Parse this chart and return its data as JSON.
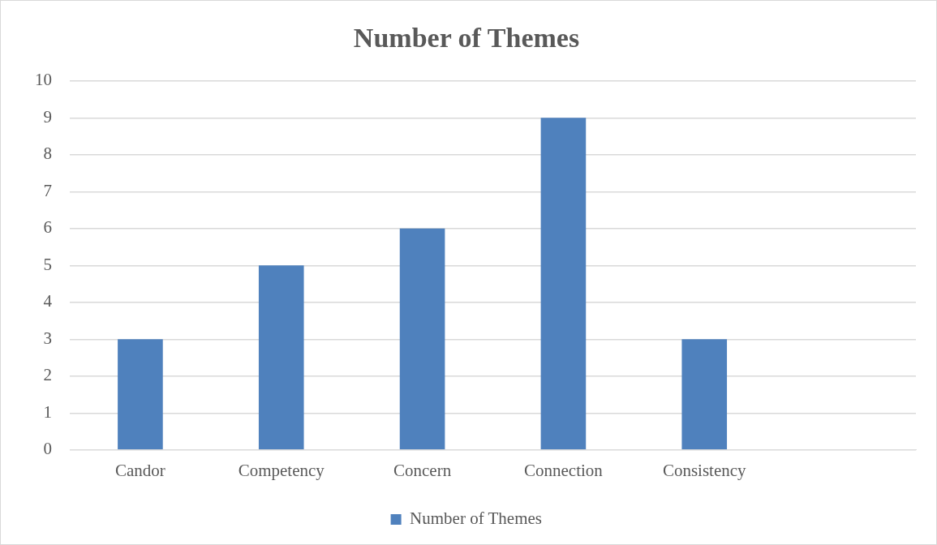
{
  "chart_data": {
    "type": "bar",
    "title": "Number of Themes",
    "categories": [
      "Candor",
      "Competency",
      "Concern",
      "Connection",
      "Consistency",
      null
    ],
    "series": [
      {
        "name": "Number of Themes",
        "color": "#4f81bd",
        "values": [
          3,
          5,
          6,
          9,
          3,
          null
        ]
      }
    ],
    "ylim": [
      0,
      10
    ],
    "yticks": [
      0,
      1,
      2,
      3,
      4,
      5,
      6,
      7,
      8,
      9,
      10
    ],
    "grid": "y",
    "legend": "bottom"
  }
}
